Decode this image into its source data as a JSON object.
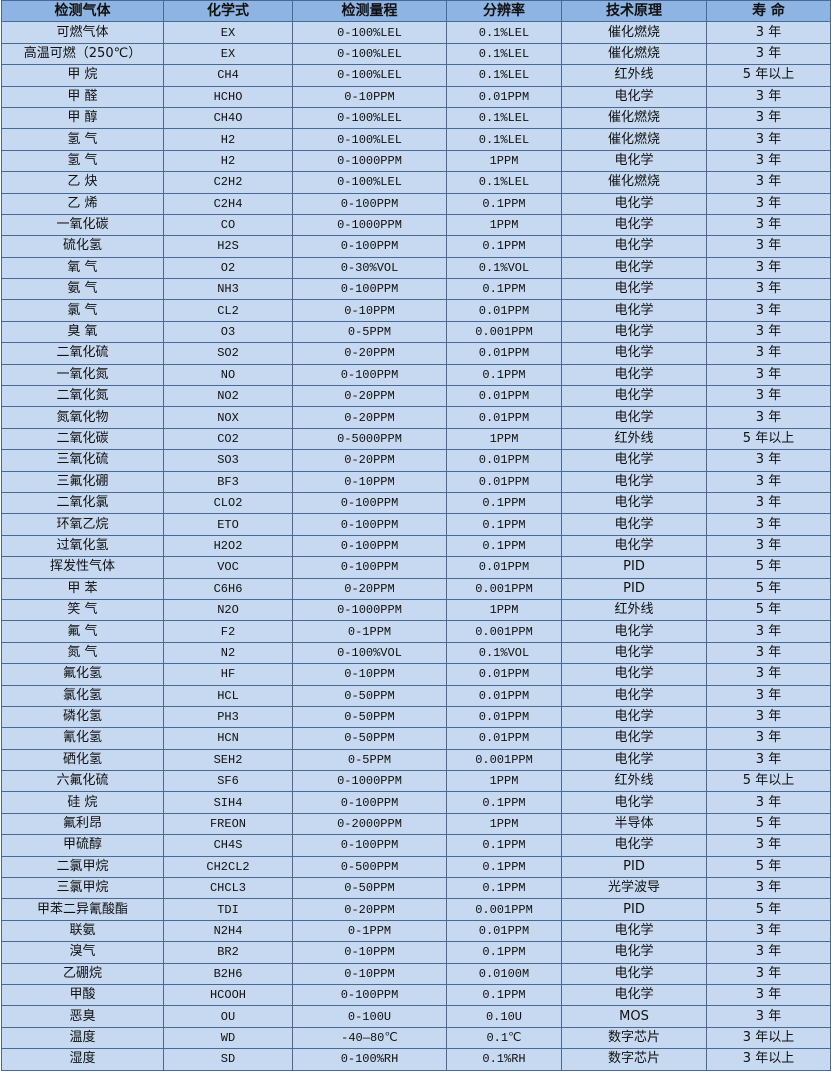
{
  "table": {
    "headers": [
      "检测气体",
      "化学式",
      "检测量程",
      "分辨率",
      "技术原理",
      "寿 命"
    ],
    "rows": [
      [
        "可燃气体",
        "EX",
        "0-100%LEL",
        "0.1%LEL",
        "催化燃烧",
        "3 年"
      ],
      [
        "高温可燃（250℃）",
        "EX",
        "0-100%LEL",
        "0.1%LEL",
        "催化燃烧",
        "3 年"
      ],
      [
        "甲 烷",
        "CH4",
        "0-100%LEL",
        "0.1%LEL",
        "红外线",
        "5 年以上"
      ],
      [
        "甲 醛",
        "HCHO",
        "0-10PPM",
        "0.01PPM",
        "电化学",
        "3 年"
      ],
      [
        "甲 醇",
        "CH4O",
        "0-100%LEL",
        "0.1%LEL",
        "催化燃烧",
        "3 年"
      ],
      [
        "氢 气",
        "H2",
        "0-100%LEL",
        "0.1%LEL",
        "催化燃烧",
        "3 年"
      ],
      [
        "氢 气",
        "H2",
        "0-1000PPM",
        "1PPM",
        "电化学",
        "3 年"
      ],
      [
        "乙 炔",
        "C2H2",
        "0-100%LEL",
        "0.1%LEL",
        "催化燃烧",
        "3 年"
      ],
      [
        "乙 烯",
        "C2H4",
        "0-100PPM",
        "0.1PPM",
        "电化学",
        "3 年"
      ],
      [
        "一氧化碳",
        "CO",
        "0-1000PPM",
        "1PPM",
        "电化学",
        "3 年"
      ],
      [
        "硫化氢",
        "H2S",
        "0-100PPM",
        "0.1PPM",
        "电化学",
        "3 年"
      ],
      [
        "氧 气",
        "O2",
        "0-30%VOL",
        "0.1%VOL",
        "电化学",
        "3 年"
      ],
      [
        "氨 气",
        "NH3",
        "0-100PPM",
        "0.1PPM",
        "电化学",
        "3 年"
      ],
      [
        "氯 气",
        "CL2",
        "0-10PPM",
        "0.01PPM",
        "电化学",
        "3 年"
      ],
      [
        "臭 氧",
        "O3",
        "0-5PPM",
        "0.001PPM",
        "电化学",
        "3 年"
      ],
      [
        "二氧化硫",
        "SO2",
        "0-20PPM",
        "0.01PPM",
        "电化学",
        "3 年"
      ],
      [
        "一氧化氮",
        "NO",
        "0-100PPM",
        "0.1PPM",
        "电化学",
        "3 年"
      ],
      [
        "二氧化氮",
        "NO2",
        "0-20PPM",
        "0.01PPM",
        "电化学",
        "3 年"
      ],
      [
        "氮氧化物",
        "NOX",
        "0-20PPM",
        "0.01PPM",
        "电化学",
        "3 年"
      ],
      [
        "二氧化碳",
        "CO2",
        "0-5000PPM",
        "1PPM",
        "红外线",
        "5 年以上"
      ],
      [
        "三氧化硫",
        "SO3",
        "0-20PPM",
        "0.01PPM",
        "电化学",
        "3 年"
      ],
      [
        "三氟化硼",
        "BF3",
        "0-10PPM",
        "0.01PPM",
        "电化学",
        "3 年"
      ],
      [
        "二氧化氯",
        "CLO2",
        "0-100PPM",
        "0.1PPM",
        "电化学",
        "3 年"
      ],
      [
        "环氧乙烷",
        "ETO",
        "0-100PPM",
        "0.1PPM",
        "电化学",
        "3 年"
      ],
      [
        "过氧化氢",
        "H2O2",
        "0-100PPM",
        "0.1PPM",
        "电化学",
        "3 年"
      ],
      [
        "挥发性气体",
        "VOC",
        "0-100PPM",
        "0.01PPM",
        "PID",
        "5 年"
      ],
      [
        "甲 苯",
        "C6H6",
        "0-20PPM",
        "0.001PPM",
        "PID",
        "5 年"
      ],
      [
        "笑 气",
        "N2O",
        "0-1000PPM",
        "1PPM",
        "红外线",
        "5 年"
      ],
      [
        "氟 气",
        "F2",
        "0-1PPM",
        "0.001PPM",
        "电化学",
        "3 年"
      ],
      [
        "氮 气",
        "N2",
        "0-100%VOL",
        "0.1%VOL",
        "电化学",
        "3 年"
      ],
      [
        "氟化氢",
        "HF",
        "0-10PPM",
        "0.01PPM",
        "电化学",
        "3 年"
      ],
      [
        "氯化氢",
        "HCL",
        "0-50PPM",
        "0.01PPM",
        "电化学",
        "3 年"
      ],
      [
        "磷化氢",
        "PH3",
        "0-50PPM",
        "0.01PPM",
        "电化学",
        "3 年"
      ],
      [
        "氰化氢",
        "HCN",
        "0-50PPM",
        "0.01PPM",
        "电化学",
        "3 年"
      ],
      [
        "硒化氢",
        "SEH2",
        "0-5PPM",
        "0.001PPM",
        "电化学",
        "3 年"
      ],
      [
        "六氟化硫",
        "SF6",
        "0-1000PPM",
        "1PPM",
        "红外线",
        "5 年以上"
      ],
      [
        "硅 烷",
        "SIH4",
        "0-100PPM",
        "0.1PPM",
        "电化学",
        "3 年"
      ],
      [
        "氟利昂",
        "FREON",
        "0-2000PPM",
        "1PPM",
        "半导体",
        "5 年"
      ],
      [
        "甲硫醇",
        "CH4S",
        "0-100PPM",
        "0.1PPM",
        "电化学",
        "3 年"
      ],
      [
        "二氯甲烷",
        "CH2CL2",
        "0-500PPM",
        "0.1PPM",
        "PID",
        "5 年"
      ],
      [
        "三氯甲烷",
        "CHCL3",
        "0-50PPM",
        "0.1PPM",
        "光学波导",
        "3 年"
      ],
      [
        "甲苯二异氰酸酯",
        "TDI",
        "0-20PPM",
        "0.001PPM",
        "PID",
        "5 年"
      ],
      [
        "联氨",
        "N2H4",
        "0-1PPM",
        "0.01PPM",
        "电化学",
        "3 年"
      ],
      [
        "溴气",
        "BR2",
        "0-10PPM",
        "0.1PPM",
        "电化学",
        "3 年"
      ],
      [
        "乙硼烷",
        "B2H6",
        "0-10PPM",
        "0.0100M",
        "电化学",
        "3 年"
      ],
      [
        "甲酸",
        "HCOOH",
        "0-100PPM",
        "0.1PPM",
        "电化学",
        "3 年"
      ],
      [
        "恶臭",
        "OU",
        "0-100U",
        "0.10U",
        "MOS",
        "3 年"
      ],
      [
        "温度",
        "WD",
        "-40—80℃",
        "0.1℃",
        "数字芯片",
        "3 年以上"
      ],
      [
        "湿度",
        "SD",
        "0-100%RH",
        "0.1%RH",
        "数字芯片",
        "3 年以上"
      ]
    ]
  },
  "colors": {
    "header_bg": "#8db4e2",
    "row_bg": "#c6d9f0",
    "border": "#4a6a96"
  }
}
